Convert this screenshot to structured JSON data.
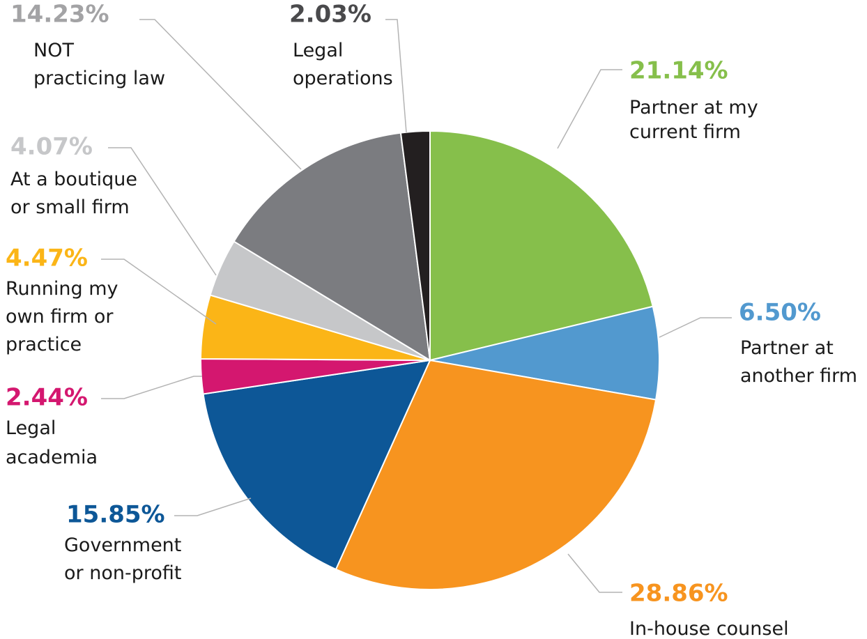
{
  "chart_data": {
    "type": "pie",
    "categories": [
      "Partner at my\ncurrent firm",
      "Partner at\nanother firm",
      "In-house counsel",
      "Government\nor non-profit",
      "Legal\nacademia",
      "Running my\nown firm or\npractice",
      "At a boutique\nor small firm",
      "NOT\npracticing law",
      "Legal\noperations"
    ],
    "values": [
      21.14,
      6.5,
      28.86,
      15.85,
      2.44,
      4.47,
      4.07,
      14.23,
      2.03
    ],
    "value_labels": [
      "21.14%",
      "6.50%",
      "28.86%",
      "15.85%",
      "2.44%",
      "4.47%",
      "4.07%",
      "14.23%",
      "2.03%"
    ],
    "colors": [
      "#86bf4b",
      "#5299cf",
      "#f7941f",
      "#0d5797",
      "#d4176f",
      "#fbb517",
      "#c6c7c9",
      "#7b7c80",
      "#231f20"
    ],
    "label_colors": [
      "#86bf4b",
      "#5299cf",
      "#f7941f",
      "#0d5797",
      "#d4176f",
      "#fbb517",
      "#c6c7c9",
      "#a3a3a5",
      "#4a4a4c"
    ]
  }
}
